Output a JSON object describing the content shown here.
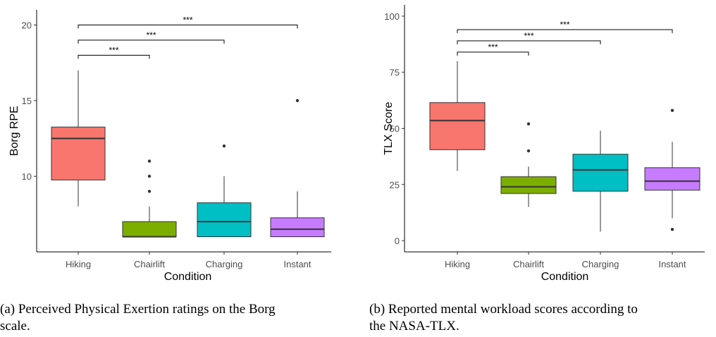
{
  "chart_data": [
    {
      "type": "box",
      "xlabel": "Condition",
      "ylabel": "Borg RPE",
      "categories": [
        "Hiking",
        "Chairlift",
        "Charging",
        "Instant"
      ],
      "ylim": [
        5,
        21
      ],
      "yticks": [
        10,
        15,
        20
      ],
      "grid": false,
      "colors": [
        "#F8766D",
        "#7CAE00",
        "#00BFC4",
        "#C77CFF"
      ],
      "boxes": [
        {
          "min": 8,
          "q1": 9.75,
          "median": 12.5,
          "q3": 13.25,
          "max": 17,
          "outliers": []
        },
        {
          "min": 6,
          "q1": 6,
          "median": 6,
          "q3": 7,
          "max": 8,
          "outliers": [
            9,
            10,
            11
          ]
        },
        {
          "min": 6,
          "q1": 6,
          "median": 7,
          "q3": 8.25,
          "max": 10,
          "outliers": [
            12
          ]
        },
        {
          "min": 6,
          "q1": 6,
          "median": 6.5,
          "q3": 7.25,
          "max": 9,
          "outliers": [
            15
          ]
        }
      ],
      "significance": [
        {
          "from": "Hiking",
          "to": "Chairlift",
          "level": 18,
          "label": "***"
        },
        {
          "from": "Hiking",
          "to": "Charging",
          "level": 19,
          "label": "***"
        },
        {
          "from": "Hiking",
          "to": "Instant",
          "level": 20,
          "label": "***"
        }
      ]
    },
    {
      "type": "box",
      "xlabel": "Condition",
      "ylabel": "TLX Score",
      "categories": [
        "Hiking",
        "Chairlift",
        "Charging",
        "Instant"
      ],
      "ylim": [
        -5,
        105
      ],
      "yticks": [
        0,
        25,
        50,
        75,
        100
      ],
      "grid": false,
      "colors": [
        "#F8766D",
        "#7CAE00",
        "#00BFC4",
        "#C77CFF"
      ],
      "boxes": [
        {
          "min": 31,
          "q1": 40.5,
          "median": 53.5,
          "q3": 61.5,
          "max": 80,
          "outliers": []
        },
        {
          "min": 15,
          "q1": 21,
          "median": 24,
          "q3": 28.5,
          "max": 33,
          "outliers": [
            40,
            52
          ]
        },
        {
          "min": 4,
          "q1": 22,
          "median": 31.5,
          "q3": 38.5,
          "max": 49,
          "outliers": []
        },
        {
          "min": 10,
          "q1": 22.5,
          "median": 26.5,
          "q3": 32.5,
          "max": 44,
          "outliers": [
            5,
            58
          ]
        }
      ],
      "significance": [
        {
          "from": "Hiking",
          "to": "Chairlift",
          "level": 84,
          "label": "***"
        },
        {
          "from": "Hiking",
          "to": "Charging",
          "level": 89,
          "label": "***"
        },
        {
          "from": "Hiking",
          "to": "Instant",
          "level": 94,
          "label": "***"
        }
      ]
    }
  ],
  "captions": {
    "a": [
      "(a) Perceived Physical Exertion ratings on the Borg",
      "scale."
    ],
    "b": [
      "(b) Reported mental workload scores according to",
      "the NASA-TLX."
    ]
  }
}
